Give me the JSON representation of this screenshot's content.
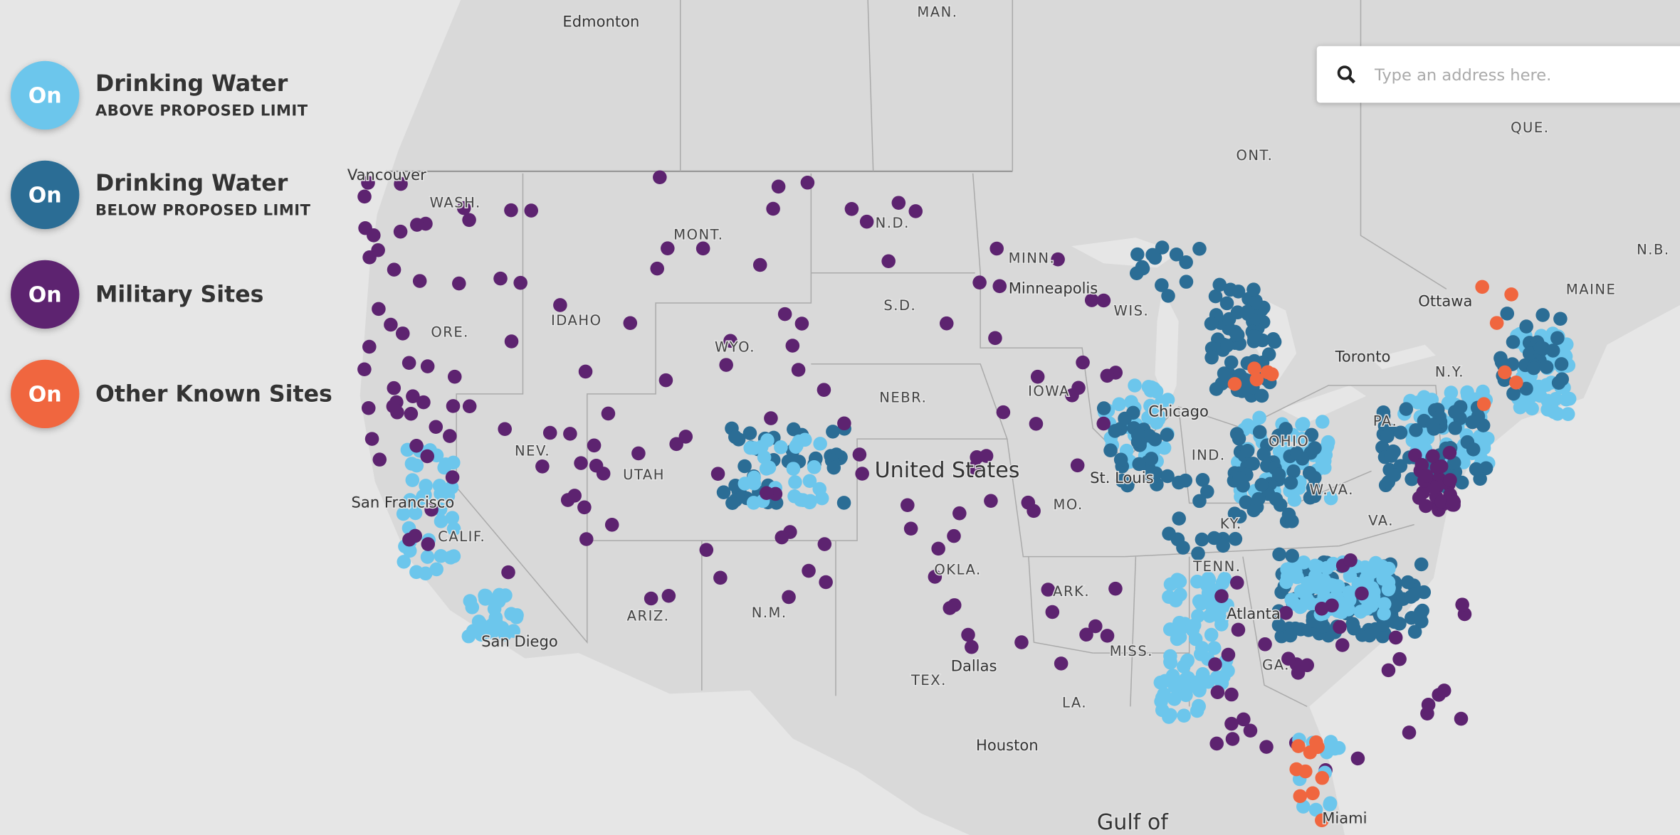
{
  "legend": [
    {
      "toggle": "On",
      "title": "Drinking Water",
      "subtitle": "ABOVE PROPOSED LIMIT",
      "color": "#6cc6ec"
    },
    {
      "toggle": "On",
      "title": "Drinking Water",
      "subtitle": "BELOW PROPOSED LIMIT",
      "color": "#2b6d95"
    },
    {
      "toggle": "On",
      "title": "Military Sites",
      "color": "#5d2370"
    },
    {
      "toggle": "On",
      "title": "Other Known Sites",
      "color": "#f0663f"
    }
  ],
  "search": {
    "placeholder": "Type an address here."
  },
  "map_labels": [
    "Edmonton",
    "MAN.",
    "ONT.",
    "QUE.",
    "N.B.",
    "MAINE",
    "Ottawa",
    "Toronto",
    "N.Y.",
    "PA.",
    "VA.",
    "W.VA.",
    "OHIO",
    "IND.",
    "KY.",
    "TENN.",
    "ARK.",
    "MISS.",
    "GA.",
    "LA.",
    "Atlanta",
    "MO.",
    "IOWA",
    "WIS.",
    "MINN.",
    "Minneapolis",
    "Chicago",
    "St. Louis",
    "N.D.",
    "S.D.",
    "NEBR.",
    "MONT.",
    "WYO.",
    "IDAHO",
    "WASH.",
    "ORE.",
    "Vancouver",
    "NEV.",
    "UTAH",
    "CALIF.",
    "San Francisco",
    "San Diego",
    "ARIZ.",
    "N.M.",
    "OKLA.",
    "TEX.",
    "Dallas",
    "Houston",
    "United States",
    "Gulf of",
    "Miami"
  ]
}
